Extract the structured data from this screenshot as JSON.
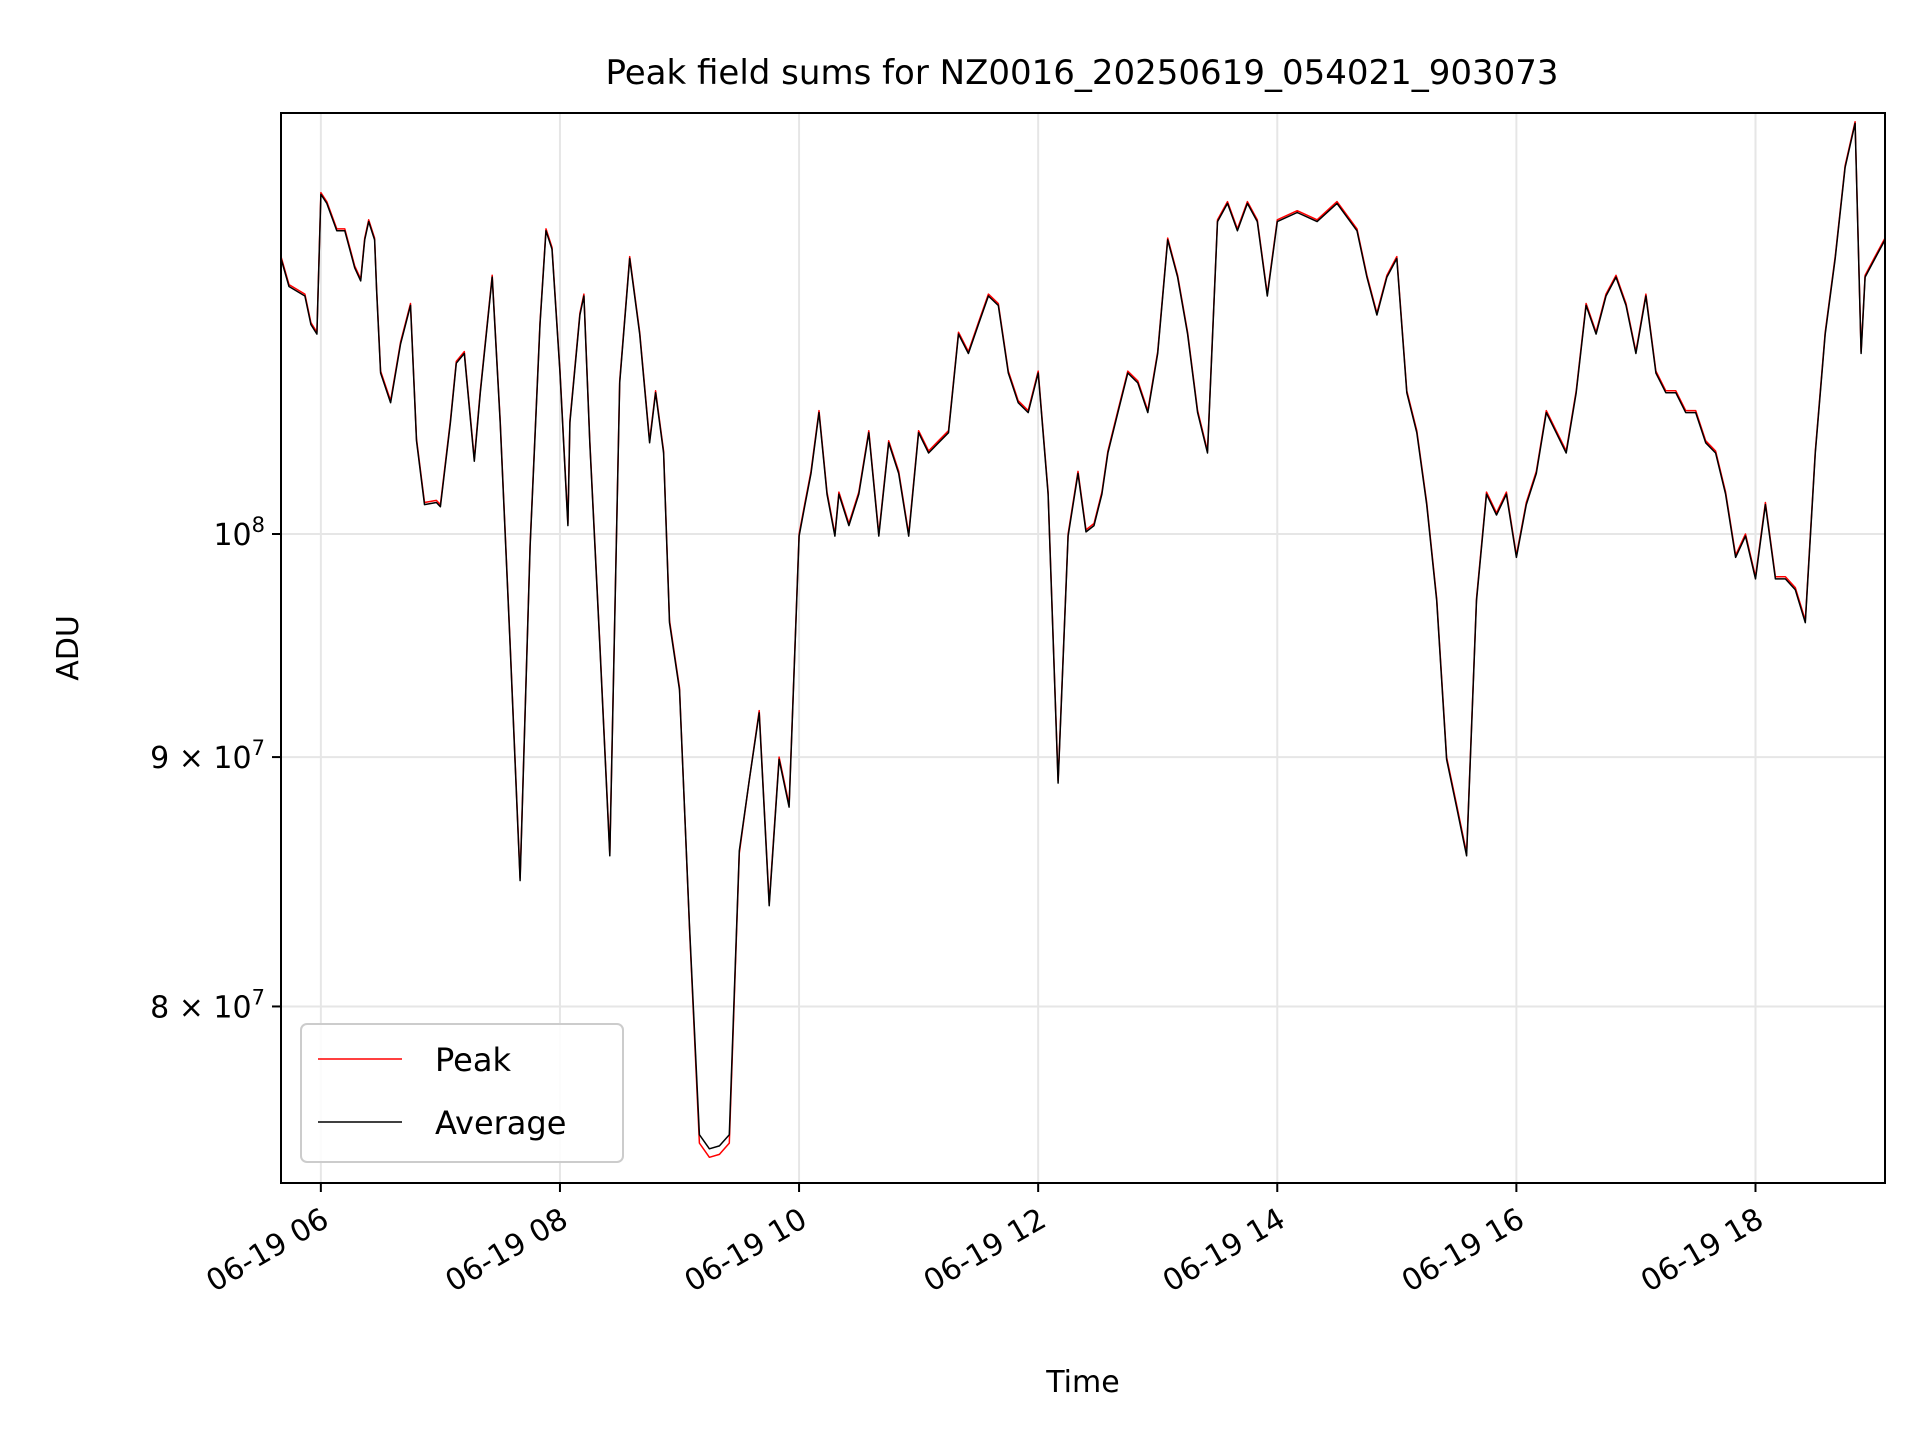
{
  "chart_data": {
    "type": "line",
    "title": "Peak field sums for NZ0016_20250619_054021_903073",
    "xlabel": "Time",
    "ylabel": "ADU",
    "yscale": "log",
    "grid": true,
    "legend_position": "lower-left",
    "xlim": [
      "2025-06-19 05:40",
      "2025-06-19 19:05"
    ],
    "ylim": [
      73600000,
      122000000
    ],
    "x_ticks": [
      {
        "value": "2025-06-19 06:00",
        "label": "06-19 06"
      },
      {
        "value": "2025-06-19 08:00",
        "label": "06-19 08"
      },
      {
        "value": "2025-06-19 10:00",
        "label": "06-19 10"
      },
      {
        "value": "2025-06-19 12:00",
        "label": "06-19 12"
      },
      {
        "value": "2025-06-19 14:00",
        "label": "06-19 14"
      },
      {
        "value": "2025-06-19 16:00",
        "label": "06-19 16"
      },
      {
        "value": "2025-06-19 18:00",
        "label": "06-19 18"
      }
    ],
    "y_ticks": [
      {
        "value": 100000000,
        "label_base": "10",
        "label_exp": "8",
        "label_prefix": ""
      },
      {
        "value": 90000000,
        "label_base": "10",
        "label_exp": "7",
        "label_prefix": "9 × "
      },
      {
        "value": 80000000,
        "label_base": "10",
        "label_exp": "7",
        "label_prefix": "8 × "
      }
    ],
    "colors": {
      "Peak": "#ff0000",
      "Average": "#000000"
    },
    "series": [
      {
        "name": "Peak",
        "x": [
          "2025-06-19 05:40",
          "2025-06-19 05:44",
          "2025-06-19 05:52",
          "2025-06-19 05:55",
          "2025-06-19 05:58",
          "2025-06-19 06:00",
          "2025-06-19 06:03",
          "2025-06-19 06:08",
          "2025-06-19 06:12",
          "2025-06-19 06:17",
          "2025-06-19 06:20",
          "2025-06-19 06:22",
          "2025-06-19 06:24",
          "2025-06-19 06:27",
          "2025-06-19 06:28",
          "2025-06-19 06:30",
          "2025-06-19 06:35",
          "2025-06-19 06:40",
          "2025-06-19 06:45",
          "2025-06-19 06:48",
          "2025-06-19 06:52",
          "2025-06-19 06:58",
          "2025-06-19 07:00",
          "2025-06-19 07:05",
          "2025-06-19 07:08",
          "2025-06-19 07:12",
          "2025-06-19 07:17",
          "2025-06-19 07:20",
          "2025-06-19 07:26",
          "2025-06-19 07:30",
          "2025-06-19 07:35",
          "2025-06-19 07:40",
          "2025-06-19 07:45",
          "2025-06-19 07:50",
          "2025-06-19 07:53",
          "2025-06-19 07:56",
          "2025-06-19 08:00",
          "2025-06-19 08:04",
          "2025-06-19 08:05",
          "2025-06-19 08:10",
          "2025-06-19 08:12",
          "2025-06-19 08:15",
          "2025-06-19 08:20",
          "2025-06-19 08:25",
          "2025-06-19 08:30",
          "2025-06-19 08:35",
          "2025-06-19 08:40",
          "2025-06-19 08:45",
          "2025-06-19 08:48",
          "2025-06-19 08:52",
          "2025-06-19 08:55",
          "2025-06-19 09:00",
          "2025-06-19 09:05",
          "2025-06-19 09:10",
          "2025-06-19 09:15",
          "2025-06-19 09:20",
          "2025-06-19 09:25",
          "2025-06-19 09:30",
          "2025-06-19 09:35",
          "2025-06-19 09:40",
          "2025-06-19 09:45",
          "2025-06-19 09:50",
          "2025-06-19 09:55",
          "2025-06-19 10:00",
          "2025-06-19 10:03",
          "2025-06-19 10:06",
          "2025-06-19 10:10",
          "2025-06-19 10:14",
          "2025-06-19 10:18",
          "2025-06-19 10:20",
          "2025-06-19 10:25",
          "2025-06-19 10:30",
          "2025-06-19 10:35",
          "2025-06-19 10:40",
          "2025-06-19 10:45",
          "2025-06-19 10:50",
          "2025-06-19 10:55",
          "2025-06-19 11:00",
          "2025-06-19 11:05",
          "2025-06-19 11:10",
          "2025-06-19 11:15",
          "2025-06-19 11:20",
          "2025-06-19 11:25",
          "2025-06-19 11:30",
          "2025-06-19 11:35",
          "2025-06-19 11:40",
          "2025-06-19 11:45",
          "2025-06-19 11:50",
          "2025-06-19 11:55",
          "2025-06-19 12:00",
          "2025-06-19 12:05",
          "2025-06-19 12:10",
          "2025-06-19 12:15",
          "2025-06-19 12:20",
          "2025-06-19 12:24",
          "2025-06-19 12:28",
          "2025-06-19 12:32",
          "2025-06-19 12:35",
          "2025-06-19 12:40",
          "2025-06-19 12:45",
          "2025-06-19 12:50",
          "2025-06-19 12:55",
          "2025-06-19 13:00",
          "2025-06-19 13:05",
          "2025-06-19 13:10",
          "2025-06-19 13:15",
          "2025-06-19 13:20",
          "2025-06-19 13:25",
          "2025-06-19 13:30",
          "2025-06-19 13:35",
          "2025-06-19 13:40",
          "2025-06-19 13:45",
          "2025-06-19 13:50",
          "2025-06-19 13:55",
          "2025-06-19 14:00",
          "2025-06-19 14:10",
          "2025-06-19 14:20",
          "2025-06-19 14:30",
          "2025-06-19 14:40",
          "2025-06-19 14:45",
          "2025-06-19 14:50",
          "2025-06-19 14:55",
          "2025-06-19 15:00",
          "2025-06-19 15:05",
          "2025-06-19 15:10",
          "2025-06-19 15:15",
          "2025-06-19 15:20",
          "2025-06-19 15:25",
          "2025-06-19 15:30",
          "2025-06-19 15:35",
          "2025-06-19 15:40",
          "2025-06-19 15:45",
          "2025-06-19 15:50",
          "2025-06-19 15:55",
          "2025-06-19 16:00",
          "2025-06-19 16:05",
          "2025-06-19 16:10",
          "2025-06-19 16:15",
          "2025-06-19 16:20",
          "2025-06-19 16:25",
          "2025-06-19 16:30",
          "2025-06-19 16:35",
          "2025-06-19 16:40",
          "2025-06-19 16:45",
          "2025-06-19 16:50",
          "2025-06-19 16:55",
          "2025-06-19 17:00",
          "2025-06-19 17:05",
          "2025-06-19 17:10",
          "2025-06-19 17:15",
          "2025-06-19 17:20",
          "2025-06-19 17:25",
          "2025-06-19 17:30",
          "2025-06-19 17:35",
          "2025-06-19 17:40",
          "2025-06-19 17:45",
          "2025-06-19 17:50",
          "2025-06-19 17:55",
          "2025-06-19 18:00",
          "2025-06-19 18:05",
          "2025-06-19 18:10",
          "2025-06-19 18:15",
          "2025-06-19 18:20",
          "2025-06-19 18:25",
          "2025-06-19 18:30",
          "2025-06-19 18:35",
          "2025-06-19 18:40",
          "2025-06-19 18:45",
          "2025-06-19 18:50",
          "2025-06-19 18:53",
          "2025-06-19 18:55",
          "2025-06-19 19:00",
          "2025-06-19 19:05"
        ],
        "values": [
          114000000,
          112500000,
          112000000,
          110500000,
          110000000,
          117500000,
          117000000,
          115500000,
          115500000,
          113500000,
          112800000,
          115000000,
          116000000,
          115000000,
          112300000,
          108000000,
          106500000,
          109500000,
          111500000,
          104600000,
          101500000,
          101600000,
          101400000,
          105500000,
          108500000,
          109000000,
          103600000,
          107000000,
          113000000,
          105500000,
          95000000,
          85000000,
          99500000,
          110500000,
          115500000,
          114500000,
          108000000,
          100500000,
          105500000,
          111000000,
          112000000,
          104500000,
          95000000,
          86000000,
          107500000,
          114000000,
          110000000,
          104500000,
          107000000,
          104000000,
          96000000,
          93000000,
          83000000,
          75000000,
          74500000,
          74600000,
          75000000,
          86000000,
          89000000,
          92000000,
          84000000,
          90000000,
          88000000,
          100000000,
          101500000,
          103000000,
          106000000,
          102000000,
          100000000,
          102000000,
          100500000,
          102000000,
          105000000,
          100000000,
          104500000,
          103000000,
          100000000,
          105000000,
          104000000,
          104500000,
          105000000,
          110000000,
          109000000,
          110500000,
          112000000,
          111500000,
          108000000,
          106500000,
          106000000,
          108000000,
          102000000,
          89000000,
          100000000,
          103000000,
          100200000,
          100500000,
          102000000,
          104000000,
          106000000,
          108000000,
          107500000,
          106000000,
          109000000,
          115000000,
          113000000,
          110000000,
          106000000,
          104000000,
          116000000,
          117000000,
          115500000,
          117000000,
          116000000,
          112000000,
          116000000,
          116500000,
          116000000,
          117000000,
          115500000,
          113000000,
          111000000,
          113000000,
          114000000,
          107000000,
          105000000,
          101500000,
          97000000,
          90000000,
          88000000,
          86000000,
          97000000,
          102000000,
          101000000,
          102000000,
          99000000,
          101500000,
          103000000,
          106000000,
          105000000,
          104000000,
          107000000,
          111500000,
          110000000,
          112000000,
          113000000,
          111500000,
          109000000,
          112000000,
          108000000,
          107000000,
          107000000,
          106000000,
          106000000,
          104500000,
          104000000,
          102000000,
          99000000,
          100000000,
          98000000,
          101500000,
          98000000,
          98000000,
          97500000,
          96000000,
          104000000,
          110000000,
          114000000,
          119000000,
          121500000,
          109000000,
          113000000,
          114000000,
          115000000
        ]
      },
      {
        "name": "Average",
        "x": [
          "2025-06-19 05:40",
          "2025-06-19 05:44",
          "2025-06-19 05:52",
          "2025-06-19 05:55",
          "2025-06-19 05:58",
          "2025-06-19 06:00",
          "2025-06-19 06:03",
          "2025-06-19 06:08",
          "2025-06-19 06:12",
          "2025-06-19 06:17",
          "2025-06-19 06:20",
          "2025-06-19 06:22",
          "2025-06-19 06:24",
          "2025-06-19 06:27",
          "2025-06-19 06:28",
          "2025-06-19 06:30",
          "2025-06-19 06:35",
          "2025-06-19 06:40",
          "2025-06-19 06:45",
          "2025-06-19 06:48",
          "2025-06-19 06:52",
          "2025-06-19 06:58",
          "2025-06-19 07:00",
          "2025-06-19 07:05",
          "2025-06-19 07:08",
          "2025-06-19 07:12",
          "2025-06-19 07:17",
          "2025-06-19 07:20",
          "2025-06-19 07:26",
          "2025-06-19 07:30",
          "2025-06-19 07:35",
          "2025-06-19 07:40",
          "2025-06-19 07:45",
          "2025-06-19 07:50",
          "2025-06-19 07:53",
          "2025-06-19 07:56",
          "2025-06-19 08:00",
          "2025-06-19 08:04",
          "2025-06-19 08:05",
          "2025-06-19 08:10",
          "2025-06-19 08:12",
          "2025-06-19 08:15",
          "2025-06-19 08:20",
          "2025-06-19 08:25",
          "2025-06-19 08:30",
          "2025-06-19 08:35",
          "2025-06-19 08:40",
          "2025-06-19 08:45",
          "2025-06-19 08:48",
          "2025-06-19 08:52",
          "2025-06-19 08:55",
          "2025-06-19 09:00",
          "2025-06-19 09:05",
          "2025-06-19 09:10",
          "2025-06-19 09:15",
          "2025-06-19 09:20",
          "2025-06-19 09:25",
          "2025-06-19 09:30",
          "2025-06-19 09:35",
          "2025-06-19 09:40",
          "2025-06-19 09:45",
          "2025-06-19 09:50",
          "2025-06-19 09:55",
          "2025-06-19 10:00",
          "2025-06-19 10:03",
          "2025-06-19 10:06",
          "2025-06-19 10:10",
          "2025-06-19 10:14",
          "2025-06-19 10:18",
          "2025-06-19 10:20",
          "2025-06-19 10:25",
          "2025-06-19 10:30",
          "2025-06-19 10:35",
          "2025-06-19 10:40",
          "2025-06-19 10:45",
          "2025-06-19 10:50",
          "2025-06-19 10:55",
          "2025-06-19 11:00",
          "2025-06-19 11:05",
          "2025-06-19 11:10",
          "2025-06-19 11:15",
          "2025-06-19 11:20",
          "2025-06-19 11:25",
          "2025-06-19 11:30",
          "2025-06-19 11:35",
          "2025-06-19 11:40",
          "2025-06-19 11:45",
          "2025-06-19 11:50",
          "2025-06-19 11:55",
          "2025-06-19 12:00",
          "2025-06-19 12:05",
          "2025-06-19 12:10",
          "2025-06-19 12:15",
          "2025-06-19 12:20",
          "2025-06-19 12:24",
          "2025-06-19 12:28",
          "2025-06-19 12:32",
          "2025-06-19 12:35",
          "2025-06-19 12:40",
          "2025-06-19 12:45",
          "2025-06-19 12:50",
          "2025-06-19 12:55",
          "2025-06-19 13:00",
          "2025-06-19 13:05",
          "2025-06-19 13:10",
          "2025-06-19 13:15",
          "2025-06-19 13:20",
          "2025-06-19 13:25",
          "2025-06-19 13:30",
          "2025-06-19 13:35",
          "2025-06-19 13:40",
          "2025-06-19 13:45",
          "2025-06-19 13:50",
          "2025-06-19 13:55",
          "2025-06-19 14:00",
          "2025-06-19 14:10",
          "2025-06-19 14:20",
          "2025-06-19 14:30",
          "2025-06-19 14:40",
          "2025-06-19 14:45",
          "2025-06-19 14:50",
          "2025-06-19 14:55",
          "2025-06-19 15:00",
          "2025-06-19 15:05",
          "2025-06-19 15:10",
          "2025-06-19 15:15",
          "2025-06-19 15:20",
          "2025-06-19 15:25",
          "2025-06-19 15:30",
          "2025-06-19 15:35",
          "2025-06-19 15:40",
          "2025-06-19 15:45",
          "2025-06-19 15:50",
          "2025-06-19 15:55",
          "2025-06-19 16:00",
          "2025-06-19 16:05",
          "2025-06-19 16:10",
          "2025-06-19 16:15",
          "2025-06-19 16:20",
          "2025-06-19 16:25",
          "2025-06-19 16:30",
          "2025-06-19 16:35",
          "2025-06-19 16:40",
          "2025-06-19 16:45",
          "2025-06-19 16:50",
          "2025-06-19 16:55",
          "2025-06-19 17:00",
          "2025-06-19 17:05",
          "2025-06-19 17:10",
          "2025-06-19 17:15",
          "2025-06-19 17:20",
          "2025-06-19 17:25",
          "2025-06-19 17:30",
          "2025-06-19 17:35",
          "2025-06-19 17:40",
          "2025-06-19 17:45",
          "2025-06-19 17:50",
          "2025-06-19 17:55",
          "2025-06-19 18:00",
          "2025-06-19 18:05",
          "2025-06-19 18:10",
          "2025-06-19 18:15",
          "2025-06-19 18:20",
          "2025-06-19 18:25",
          "2025-06-19 18:30",
          "2025-06-19 18:35",
          "2025-06-19 18:40",
          "2025-06-19 18:45",
          "2025-06-19 18:50",
          "2025-06-19 18:53",
          "2025-06-19 18:55",
          "2025-06-19 19:00",
          "2025-06-19 19:05"
        ],
        "values": [
          113900000,
          112400000,
          111900000,
          110400000,
          109900000,
          117400000,
          116900000,
          115400000,
          115400000,
          113400000,
          112700000,
          114900000,
          115900000,
          114900000,
          112200000,
          107900000,
          106400000,
          109400000,
          111400000,
          104500000,
          101400000,
          101500000,
          101300000,
          105400000,
          108400000,
          108900000,
          103500000,
          106900000,
          112900000,
          105400000,
          94900000,
          84900000,
          99400000,
          110400000,
          115400000,
          114400000,
          107900000,
          100400000,
          105400000,
          110900000,
          111900000,
          104400000,
          94900000,
          85900000,
          107400000,
          113900000,
          109900000,
          104400000,
          106900000,
          103900000,
          95900000,
          92900000,
          83100000,
          75300000,
          74800000,
          74900000,
          75300000,
          86100000,
          89000000,
          91900000,
          83900000,
          89900000,
          87900000,
          99900000,
          101400000,
          102900000,
          105900000,
          101900000,
          99900000,
          101900000,
          100400000,
          101900000,
          104900000,
          99900000,
          104400000,
          102900000,
          99900000,
          104900000,
          103900000,
          104400000,
          104900000,
          109900000,
          108900000,
          110400000,
          111900000,
          111400000,
          107900000,
          106400000,
          105900000,
          107900000,
          101900000,
          88900000,
          99900000,
          102900000,
          100100000,
          100400000,
          101900000,
          103900000,
          105900000,
          107900000,
          107400000,
          105900000,
          108900000,
          114900000,
          112900000,
          109900000,
          105900000,
          103900000,
          115900000,
          116900000,
          115400000,
          116900000,
          115900000,
          111900000,
          115900000,
          116400000,
          115900000,
          116900000,
          115400000,
          112900000,
          110900000,
          112900000,
          113900000,
          106900000,
          104900000,
          101400000,
          96900000,
          89900000,
          87900000,
          85900000,
          96900000,
          101900000,
          100900000,
          101900000,
          98900000,
          101400000,
          102900000,
          105900000,
          104900000,
          103900000,
          106900000,
          111400000,
          109900000,
          111900000,
          112900000,
          111400000,
          108900000,
          111900000,
          107900000,
          106900000,
          106900000,
          105900000,
          105900000,
          104400000,
          103900000,
          101900000,
          98900000,
          99900000,
          97900000,
          101400000,
          97900000,
          97900000,
          97400000,
          95900000,
          103900000,
          109900000,
          113900000,
          118900000,
          121400000,
          108900000,
          112900000,
          113900000,
          114900000
        ]
      }
    ]
  }
}
